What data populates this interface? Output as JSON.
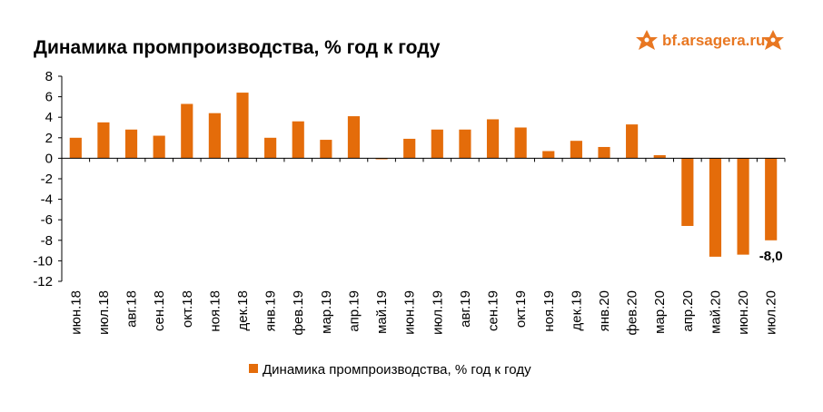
{
  "header": {
    "title": "Динамика промпроизводства, % год к году",
    "brand": "bf.arsagera.ru",
    "brand_icon": "arsagera-logo-icon",
    "brand_color": "#e87722"
  },
  "colors": {
    "bar": "#e46c0a"
  },
  "chart_data": {
    "type": "bar",
    "title": "Динамика промпроизводства, % год к году",
    "categories": [
      "июн.18",
      "июл.18",
      "авг.18",
      "сен.18",
      "окт.18",
      "ноя.18",
      "дек.18",
      "янв.19",
      "фев.19",
      "мар.19",
      "апр.19",
      "май.19",
      "июн.19",
      "июл.19",
      "авг.19",
      "сен.19",
      "окт.19",
      "ноя.19",
      "дек.19",
      "янв.20",
      "фев.20",
      "мар.20",
      "апр.20",
      "май.20",
      "июн.20",
      "июл.20"
    ],
    "series": [
      {
        "name": "Динамика промпроизводства, % год к году",
        "values": [
          2.0,
          3.5,
          2.8,
          2.2,
          5.3,
          4.4,
          6.4,
          2.0,
          3.6,
          1.8,
          4.1,
          -0.1,
          1.9,
          2.8,
          2.8,
          3.8,
          3.0,
          0.7,
          1.7,
          1.1,
          3.3,
          0.3,
          -6.6,
          -9.6,
          -9.4,
          -8.0
        ]
      }
    ],
    "data_labels": [
      {
        "category": "июл.20",
        "text": "-8,0"
      }
    ],
    "ylim": [
      -12,
      8
    ],
    "yticks": [
      8,
      6,
      4,
      2,
      0,
      -2,
      -4,
      -6,
      -8,
      -10,
      -12
    ],
    "grid": false,
    "legend": "bottom"
  }
}
